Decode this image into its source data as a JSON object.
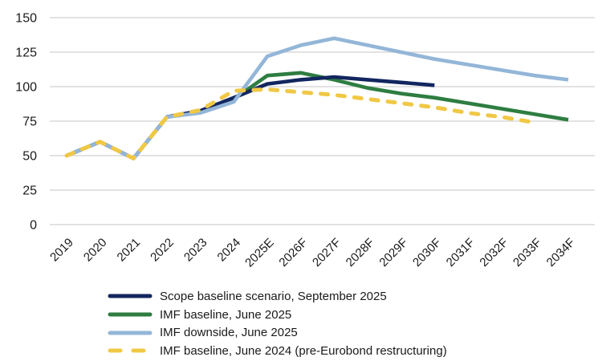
{
  "chart_data": {
    "type": "line",
    "title": "",
    "categories": [
      "2019",
      "2020",
      "2021",
      "2022",
      "2023",
      "2024",
      "2025E",
      "2026F",
      "2027F",
      "2028F",
      "2029F",
      "2030F",
      "2031F",
      "2032F",
      "2033F",
      "2034F"
    ],
    "y_ticks": [
      0,
      25,
      50,
      75,
      100,
      125,
      150
    ],
    "ylim": [
      0,
      150
    ],
    "grid": "horizontal-only",
    "legend_position": "bottom-left",
    "colors": {
      "background": "#ffffff",
      "gridline": "#d8d8d8",
      "text": "#1a1a1a",
      "scope_navy": "#12265f",
      "imf_green": "#2e7d41",
      "imf_light_blue": "#93b6d8",
      "imf_yellow": "#f0c845"
    },
    "draw_order": [
      1,
      0,
      2,
      3
    ],
    "series": [
      {
        "name": "Scope baseline scenario, September 2025",
        "color": "#12265f",
        "style": "solid",
        "values": [
          50,
          60,
          48,
          78,
          82.5,
          92,
          102,
          105,
          107,
          105,
          103,
          101,
          null,
          null,
          null,
          null
        ]
      },
      {
        "name": "IMF baseline, June 2025",
        "color": "#2e7d41",
        "style": "solid",
        "values": [
          50,
          60,
          48,
          78,
          82,
          91,
          108,
          110,
          105,
          99,
          95,
          92,
          88,
          84,
          80,
          76
        ]
      },
      {
        "name": "IMF downside, June 2025",
        "color": "#93b6d8",
        "style": "solid",
        "values": [
          50,
          60,
          48,
          78,
          81,
          89,
          122,
          130,
          135,
          130,
          125,
          120,
          116,
          112,
          108,
          105
        ]
      },
      {
        "name": "IMF baseline, June 2024 (pre-Eurobond restructuring)",
        "color": "#f0c845",
        "style": "dashed",
        "values": [
          50,
          60,
          48,
          78,
          83,
          97,
          98,
          96,
          94,
          91,
          88,
          85,
          81,
          78,
          74,
          null
        ]
      }
    ]
  }
}
